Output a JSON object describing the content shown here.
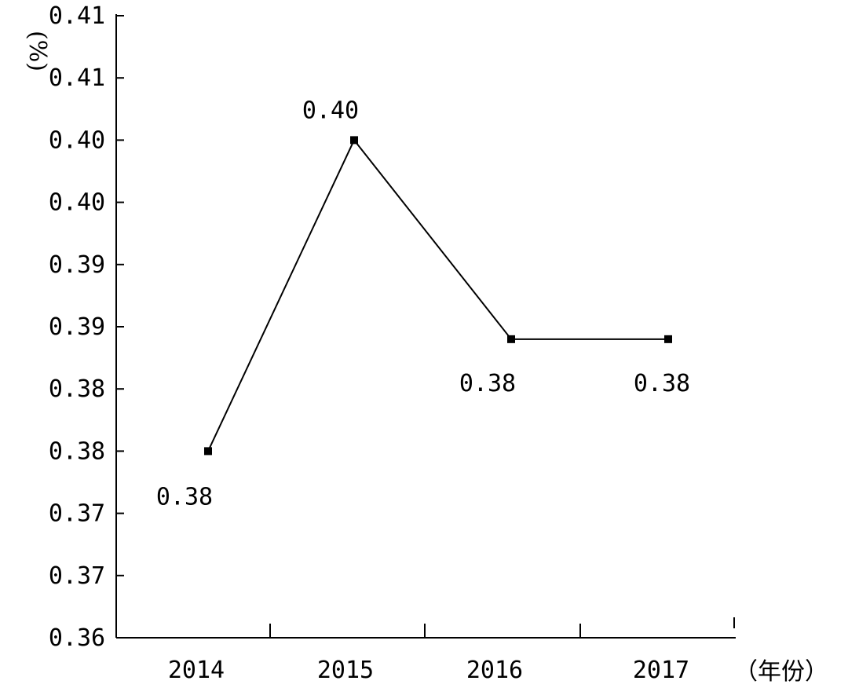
{
  "chart_data": {
    "type": "line",
    "title": "",
    "xlabel": "（年份）",
    "ylabel": "(%)",
    "categories": [
      "2014",
      "2015",
      "2016",
      "2017"
    ],
    "y_tick_labels": [
      "0.36",
      "0.37",
      "0.37",
      "0.38",
      "0.38",
      "0.39",
      "0.39",
      "0.40",
      "0.40",
      "0.41",
      "0.41"
    ],
    "ylim": [
      0.36,
      0.41
    ],
    "series": [
      {
        "values": [
          0.375,
          0.4,
          0.384,
          0.384
        ],
        "data_labels": [
          "0.38",
          "0.40",
          "0.38",
          "0.38"
        ],
        "marker": "square",
        "color": "#000000"
      }
    ],
    "grid": false,
    "legend": "none"
  }
}
